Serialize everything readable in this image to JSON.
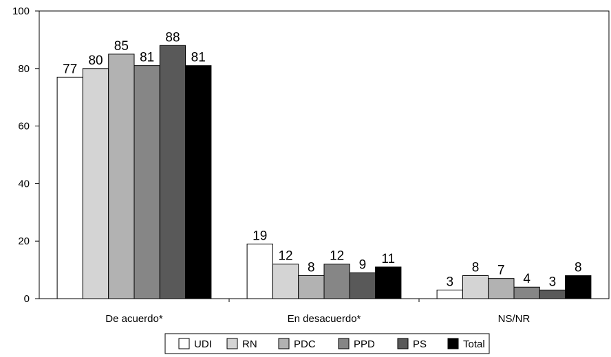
{
  "chart_data": {
    "type": "bar",
    "categories": [
      "De acuerdo*",
      "En desacuerdo*",
      "NS/NR"
    ],
    "series": [
      {
        "name": "UDI",
        "values": [
          77,
          19,
          3
        ],
        "color": "#ffffff"
      },
      {
        "name": "RN",
        "values": [
          80,
          12,
          8
        ],
        "color": "#d4d4d4"
      },
      {
        "name": "PDC",
        "values": [
          85,
          8,
          7
        ],
        "color": "#b2b2b2"
      },
      {
        "name": "PPD",
        "values": [
          81,
          12,
          4
        ],
        "color": "#868686"
      },
      {
        "name": "PS",
        "values": [
          88,
          9,
          3
        ],
        "color": "#595959"
      },
      {
        "name": "Total",
        "values": [
          81,
          11,
          8
        ],
        "color": "#000000"
      }
    ],
    "ylim": [
      0,
      100
    ],
    "yticks": [
      0,
      20,
      40,
      60,
      80,
      100
    ],
    "grid": false,
    "legend_position": "bottom-center",
    "title": "",
    "xlabel": "",
    "ylabel": ""
  }
}
